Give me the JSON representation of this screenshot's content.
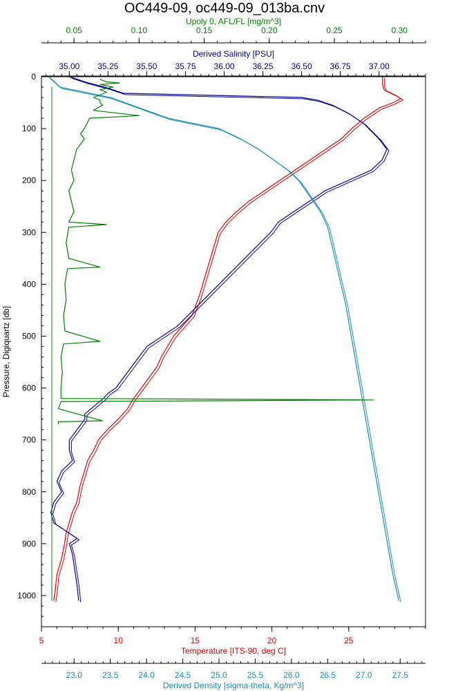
{
  "chart_data": {
    "type": "line",
    "title": "OC449-09, oc449-09_013ba.cnv",
    "y_axis": {
      "label": "Pressure, Digiquartz [db]",
      "range": [
        0,
        1060
      ],
      "inverted": true,
      "ticks": [
        0,
        100,
        200,
        300,
        400,
        500,
        600,
        700,
        800,
        900,
        1000
      ]
    },
    "axes": {
      "fluorescence": {
        "label": "Upoly 0, AFL/FL [mg/m^3]",
        "color": "#007f00",
        "range": [
          0.025,
          0.32
        ],
        "ticks": [
          0.05,
          0.1,
          0.15,
          0.2,
          0.25,
          0.3
        ],
        "tick_labels": [
          "0.05",
          "0.10",
          "0.15",
          "0.20",
          "0.25",
          "0.30"
        ]
      },
      "salinity": {
        "label": "Derived Salinity [PSU]",
        "color": "#00008b",
        "range": [
          34.82,
          37.3
        ],
        "ticks": [
          35.0,
          35.25,
          35.5,
          35.75,
          36.0,
          36.25,
          36.5,
          36.75,
          37.0
        ],
        "tick_labels": [
          "35.00",
          "35.25",
          "35.50",
          "35.75",
          "36.00",
          "36.25",
          "36.50",
          "36.75",
          "37.00"
        ]
      },
      "temperature": {
        "label": "Temperature [ITS-90, deg C]",
        "color": "#dd0000",
        "range": [
          5,
          30
        ],
        "ticks": [
          5,
          10,
          15,
          20,
          25
        ],
        "tick_labels": [
          "5",
          "10",
          "15",
          "20",
          "25"
        ]
      },
      "density": {
        "label": "Derived Density [sigma-theta, Kg/m^3]",
        "color": "#1a8fb5",
        "range": [
          22.55,
          27.85
        ],
        "ticks": [
          23.0,
          23.5,
          24.0,
          24.5,
          25.0,
          25.5,
          26.0,
          26.5,
          27.0,
          27.5
        ],
        "tick_labels": [
          "23.0",
          "23.5",
          "24.0",
          "24.5",
          "25.0",
          "25.5",
          "26.0",
          "26.5",
          "27.0",
          "27.5"
        ]
      }
    },
    "series": [
      {
        "key": "temperature",
        "axis": "temperature",
        "points": [
          [
            27.2,
            0
          ],
          [
            27.2,
            15
          ],
          [
            27.3,
            25
          ],
          [
            28.0,
            35
          ],
          [
            28.4,
            42
          ],
          [
            27.9,
            50
          ],
          [
            27.0,
            60
          ],
          [
            26.0,
            80
          ],
          [
            25.2,
            100
          ],
          [
            24.5,
            120
          ],
          [
            23.5,
            140
          ],
          [
            22.5,
            160
          ],
          [
            21.5,
            180
          ],
          [
            20.5,
            200
          ],
          [
            19.5,
            220
          ],
          [
            18.5,
            240
          ],
          [
            17.7,
            260
          ],
          [
            17.0,
            280
          ],
          [
            16.5,
            300
          ],
          [
            16.2,
            330
          ],
          [
            15.9,
            360
          ],
          [
            15.6,
            390
          ],
          [
            15.3,
            420
          ],
          [
            14.8,
            460
          ],
          [
            14.2,
            480
          ],
          [
            13.6,
            500
          ],
          [
            13.2,
            520
          ],
          [
            12.8,
            540
          ],
          [
            12.5,
            560
          ],
          [
            12.0,
            580
          ],
          [
            11.5,
            600
          ],
          [
            11.0,
            620
          ],
          [
            10.6,
            640
          ],
          [
            10.0,
            660
          ],
          [
            9.3,
            680
          ],
          [
            8.7,
            700
          ],
          [
            8.4,
            720
          ],
          [
            8.0,
            740
          ],
          [
            7.8,
            760
          ],
          [
            7.5,
            790
          ],
          [
            7.3,
            820
          ],
          [
            7.0,
            840
          ],
          [
            6.8,
            860
          ],
          [
            6.6,
            880
          ],
          [
            6.5,
            900
          ],
          [
            6.3,
            930
          ],
          [
            6.0,
            960
          ],
          [
            5.9,
            990
          ],
          [
            5.8,
            1010
          ]
        ]
      },
      {
        "key": "salinity",
        "axis": "salinity",
        "points": [
          [
            35.0,
            0
          ],
          [
            35.1,
            10
          ],
          [
            35.2,
            18
          ],
          [
            35.25,
            22
          ],
          [
            35.3,
            27
          ],
          [
            35.35,
            32
          ],
          [
            36.5,
            40
          ],
          [
            36.6,
            45
          ],
          [
            36.7,
            55
          ],
          [
            36.8,
            70
          ],
          [
            36.9,
            90
          ],
          [
            36.95,
            105
          ],
          [
            37.0,
            120
          ],
          [
            37.05,
            140
          ],
          [
            37.02,
            160
          ],
          [
            36.95,
            180
          ],
          [
            36.8,
            200
          ],
          [
            36.65,
            220
          ],
          [
            36.55,
            240
          ],
          [
            36.45,
            260
          ],
          [
            36.35,
            280
          ],
          [
            36.3,
            300
          ],
          [
            36.2,
            330
          ],
          [
            36.1,
            360
          ],
          [
            36.0,
            390
          ],
          [
            35.9,
            420
          ],
          [
            35.8,
            450
          ],
          [
            35.7,
            480
          ],
          [
            35.6,
            500
          ],
          [
            35.5,
            520
          ],
          [
            35.45,
            540
          ],
          [
            35.4,
            560
          ],
          [
            35.35,
            580
          ],
          [
            35.3,
            600
          ],
          [
            35.25,
            610
          ],
          [
            35.22,
            620
          ],
          [
            35.18,
            630
          ],
          [
            35.1,
            650
          ],
          [
            35.1,
            660
          ],
          [
            35.05,
            680
          ],
          [
            35.0,
            700
          ],
          [
            35.0,
            720
          ],
          [
            35.02,
            740
          ],
          [
            34.95,
            760
          ],
          [
            34.92,
            780
          ],
          [
            34.95,
            800
          ],
          [
            34.9,
            820
          ],
          [
            34.88,
            840
          ],
          [
            34.9,
            860
          ],
          [
            35.0,
            880
          ],
          [
            35.05,
            890
          ],
          [
            35.0,
            900
          ],
          [
            35.02,
            920
          ],
          [
            35.03,
            940
          ],
          [
            35.04,
            960
          ],
          [
            35.05,
            980
          ],
          [
            35.06,
            1010
          ]
        ]
      },
      {
        "key": "density",
        "axis": "density",
        "points": [
          [
            22.65,
            0
          ],
          [
            22.8,
            20
          ],
          [
            23.5,
            40
          ],
          [
            23.9,
            60
          ],
          [
            24.3,
            80
          ],
          [
            25.0,
            100
          ],
          [
            25.3,
            120
          ],
          [
            25.55,
            140
          ],
          [
            25.75,
            160
          ],
          [
            25.95,
            180
          ],
          [
            26.1,
            200
          ],
          [
            26.25,
            230
          ],
          [
            26.4,
            260
          ],
          [
            26.5,
            290
          ],
          [
            26.55,
            320
          ],
          [
            26.6,
            350
          ],
          [
            26.65,
            380
          ],
          [
            26.7,
            410
          ],
          [
            26.75,
            440
          ],
          [
            26.8,
            480
          ],
          [
            26.85,
            520
          ],
          [
            26.9,
            560
          ],
          [
            26.95,
            600
          ],
          [
            27.0,
            640
          ],
          [
            27.05,
            680
          ],
          [
            27.1,
            720
          ],
          [
            27.15,
            760
          ],
          [
            27.2,
            800
          ],
          [
            27.25,
            840
          ],
          [
            27.3,
            880
          ],
          [
            27.35,
            920
          ],
          [
            27.4,
            960
          ],
          [
            27.45,
            990
          ],
          [
            27.48,
            1010
          ]
        ]
      },
      {
        "key": "fluorescence",
        "axis": "fluorescence",
        "points": [
          [
            0.07,
            5
          ],
          [
            0.075,
            10
          ],
          [
            0.085,
            12
          ],
          [
            0.07,
            15
          ],
          [
            0.08,
            20
          ],
          [
            0.07,
            25
          ],
          [
            0.075,
            30
          ],
          [
            0.065,
            40
          ],
          [
            0.07,
            45
          ],
          [
            0.07,
            50
          ],
          [
            0.072,
            55
          ],
          [
            0.068,
            60
          ],
          [
            0.065,
            65
          ],
          [
            0.1,
            75
          ],
          [
            0.062,
            80
          ],
          [
            0.06,
            90
          ],
          [
            0.058,
            100
          ],
          [
            0.055,
            110
          ],
          [
            0.058,
            120
          ],
          [
            0.052,
            140
          ],
          [
            0.05,
            160
          ],
          [
            0.048,
            180
          ],
          [
            0.05,
            200
          ],
          [
            0.046,
            220
          ],
          [
            0.048,
            240
          ],
          [
            0.05,
            260
          ],
          [
            0.046,
            280
          ],
          [
            0.075,
            285
          ],
          [
            0.046,
            290
          ],
          [
            0.044,
            320
          ],
          [
            0.046,
            350
          ],
          [
            0.07,
            367
          ],
          [
            0.045,
            370
          ],
          [
            0.043,
            400
          ],
          [
            0.044,
            430
          ],
          [
            0.042,
            460
          ],
          [
            0.043,
            490
          ],
          [
            0.07,
            510
          ],
          [
            0.042,
            515
          ],
          [
            0.04,
            540
          ],
          [
            0.041,
            570
          ],
          [
            0.04,
            600
          ],
          [
            0.04,
            620
          ],
          [
            0.28,
            623
          ],
          [
            0.04,
            626
          ],
          [
            0.038,
            640
          ],
          [
            0.072,
            663
          ],
          [
            0.038,
            665
          ],
          [
            0.038,
            670
          ]
        ]
      }
    ],
    "fluorescence_baseline": 0.033
  }
}
